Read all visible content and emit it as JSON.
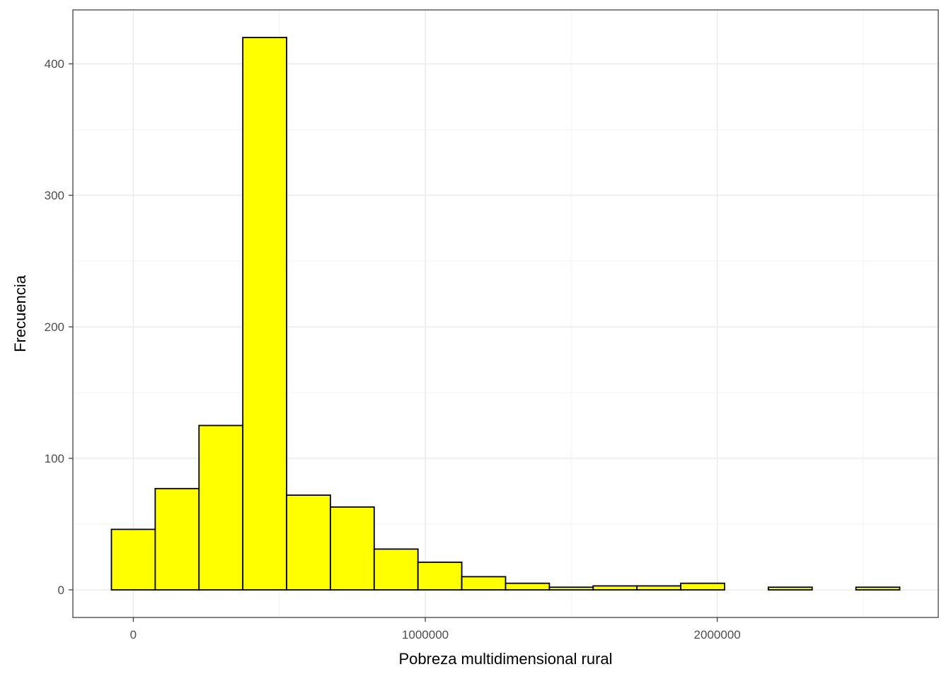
{
  "chart_data": {
    "type": "bar",
    "subtype": "histogram",
    "xlabel": "Pobreza multidimensional rural",
    "ylabel": "Frecuencia",
    "title": "",
    "bin_width": 150000,
    "bin_start": -75000,
    "bins": [
      {
        "x0": -75000,
        "x1": 75000,
        "count": 46
      },
      {
        "x0": 75000,
        "x1": 225000,
        "count": 77
      },
      {
        "x0": 225000,
        "x1": 375000,
        "count": 125
      },
      {
        "x0": 375000,
        "x1": 525000,
        "count": 420
      },
      {
        "x0": 525000,
        "x1": 675000,
        "count": 72
      },
      {
        "x0": 675000,
        "x1": 825000,
        "count": 63
      },
      {
        "x0": 825000,
        "x1": 975000,
        "count": 31
      },
      {
        "x0": 975000,
        "x1": 1125000,
        "count": 21
      },
      {
        "x0": 1125000,
        "x1": 1275000,
        "count": 10
      },
      {
        "x0": 1275000,
        "x1": 1425000,
        "count": 5
      },
      {
        "x0": 1425000,
        "x1": 1575000,
        "count": 2
      },
      {
        "x0": 1575000,
        "x1": 1725000,
        "count": 3
      },
      {
        "x0": 1725000,
        "x1": 1875000,
        "count": 3
      },
      {
        "x0": 1875000,
        "x1": 2025000,
        "count": 5
      },
      {
        "x0": 2025000,
        "x1": 2175000,
        "count": 0
      },
      {
        "x0": 2175000,
        "x1": 2325000,
        "count": 2
      },
      {
        "x0": 2325000,
        "x1": 2475000,
        "count": 0
      },
      {
        "x0": 2475000,
        "x1": 2625000,
        "count": 2
      }
    ],
    "xlim": [
      -207000,
      2757000
    ],
    "ylim": [
      -21,
      441
    ],
    "x_ticks": [
      0,
      1000000,
      2000000
    ],
    "x_tick_labels": [
      "0",
      "1000000",
      "2000000"
    ],
    "x_minor_ticks": [
      500000,
      1500000,
      2500000
    ],
    "y_ticks": [
      0,
      100,
      200,
      300,
      400
    ],
    "y_tick_labels": [
      "0",
      "100",
      "200",
      "300",
      "400"
    ],
    "y_minor_ticks": [
      50,
      150,
      250,
      350
    ],
    "grid": true,
    "colors": {
      "bar_fill": "#ffff00",
      "bar_stroke": "#000000",
      "grid_major": "#ebebeb",
      "grid_minor": "#f3f3f3",
      "panel_border": "#333333"
    }
  }
}
